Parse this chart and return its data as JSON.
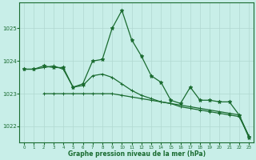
{
  "title": "Graphe pression niveau de la mer (hPa)",
  "background_color": "#c8eee8",
  "grid_color": "#b0d8d0",
  "line_color": "#1a6b30",
  "xlim": [
    -0.5,
    23.5
  ],
  "ylim": [
    1021.5,
    1025.8
  ],
  "yticks": [
    1022,
    1023,
    1024,
    1025
  ],
  "xticks": [
    0,
    1,
    2,
    3,
    4,
    5,
    6,
    7,
    8,
    9,
    10,
    11,
    12,
    13,
    14,
    15,
    16,
    17,
    18,
    19,
    20,
    21,
    22,
    23
  ],
  "series1_x": [
    0,
    1,
    2,
    3,
    4,
    5,
    6,
    7,
    8,
    9,
    10,
    11,
    12,
    13,
    14,
    15,
    16,
    17,
    18,
    19,
    20,
    21,
    22,
    23
  ],
  "series1_y": [
    1023.75,
    1023.75,
    1023.8,
    1023.85,
    1023.75,
    1023.2,
    1023.25,
    1023.55,
    1023.6,
    1023.5,
    1023.3,
    1023.1,
    1022.95,
    1022.85,
    1022.75,
    1022.7,
    1022.6,
    1022.55,
    1022.5,
    1022.45,
    1022.4,
    1022.35,
    1022.3,
    1021.7
  ],
  "series2_x": [
    0,
    1,
    2,
    3,
    4,
    5,
    6,
    7,
    8,
    9,
    10,
    11,
    12,
    13,
    14,
    15,
    16,
    17,
    18,
    19,
    20,
    21,
    22,
    23
  ],
  "series2_y": [
    1023.75,
    1023.75,
    1023.85,
    1023.8,
    1023.8,
    1023.2,
    1023.3,
    1024.0,
    1024.05,
    1025.0,
    1025.55,
    1024.65,
    1024.15,
    1023.55,
    1023.35,
    1022.8,
    1022.7,
    1023.2,
    1022.8,
    1022.8,
    1022.75,
    1022.75,
    1022.35,
    1021.65
  ],
  "series3_x": [
    2,
    3,
    4,
    5,
    6,
    7,
    8,
    9,
    10,
    11,
    12,
    13,
    14,
    15,
    16,
    17,
    18,
    19,
    20,
    21,
    22,
    23
  ],
  "series3_y": [
    1023.0,
    1023.0,
    1023.0,
    1023.0,
    1023.0,
    1023.0,
    1023.0,
    1023.0,
    1022.95,
    1022.9,
    1022.85,
    1022.8,
    1022.75,
    1022.7,
    1022.65,
    1022.6,
    1022.55,
    1022.5,
    1022.45,
    1022.4,
    1022.35,
    1021.7
  ]
}
